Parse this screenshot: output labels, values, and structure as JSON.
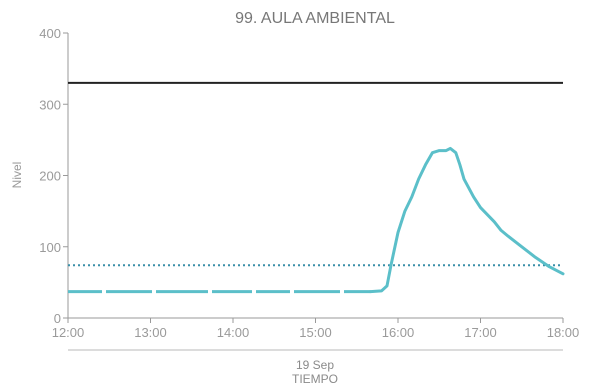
{
  "chart_data": {
    "type": "line",
    "title": "99. AULA AMBIENTAL",
    "ylabel": "Nivel",
    "xlabel": "TIEMPO",
    "date_label": "19 Sep",
    "ylim": [
      0,
      400
    ],
    "yticks": [
      0,
      100,
      200,
      300,
      400
    ],
    "xlim": [
      "12:00",
      "18:00"
    ],
    "xticks": [
      "12:00",
      "13:00",
      "14:00",
      "15:00",
      "16:00",
      "17:00",
      "18:00"
    ],
    "grid": false,
    "reference_lines": [
      {
        "value": 330,
        "style": "solid",
        "color": "#222222"
      },
      {
        "value": 74,
        "style": "dotted",
        "color": "#3a8fa8"
      }
    ],
    "series": [
      {
        "color": "#5bbfc9",
        "x": [
          "12:00",
          "12:30",
          "13:00",
          "13:30",
          "14:00",
          "14:30",
          "15:00",
          "15:20",
          "15:40",
          "15:48",
          "15:52",
          "15:55",
          "16:00",
          "16:05",
          "16:10",
          "16:15",
          "16:20",
          "16:25",
          "16:30",
          "16:35",
          "16:38",
          "16:42",
          "16:45",
          "16:48",
          "16:55",
          "17:00",
          "17:10",
          "17:15",
          "17:20",
          "17:30",
          "17:40",
          "17:50",
          "18:00"
        ],
        "values": [
          37,
          37,
          37,
          37,
          37,
          37,
          37,
          37,
          37,
          38,
          45,
          75,
          120,
          150,
          170,
          195,
          215,
          232,
          235,
          235,
          238,
          232,
          215,
          195,
          170,
          155,
          135,
          123,
          115,
          100,
          85,
          72,
          62
        ],
        "gap_segments": [
          [
            "12:00",
            "15:40"
          ]
        ]
      }
    ]
  }
}
